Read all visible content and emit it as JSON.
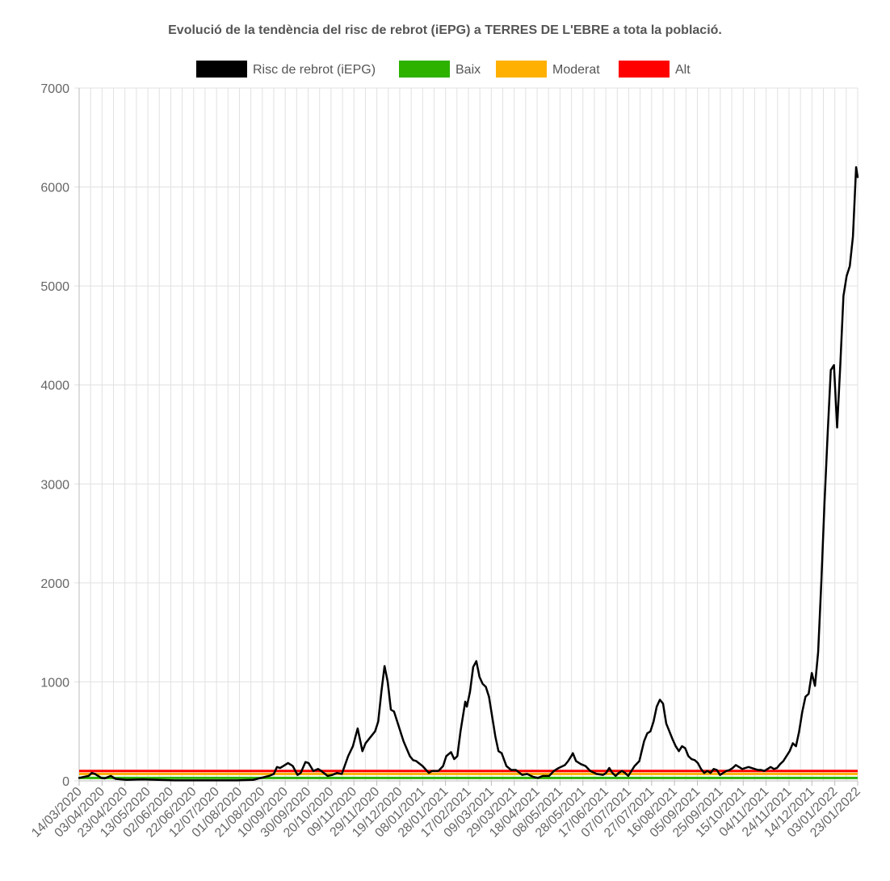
{
  "chart_data": {
    "type": "line",
    "title": "Evolució de la tendència del risc de rebrot (iEPG) a TERRES DE L'EBRE a tota la població.",
    "legend": [
      {
        "name": "Risc de rebrot (iEPG)",
        "color": "#000000"
      },
      {
        "name": "Baix",
        "color": "#2db200"
      },
      {
        "name": "Moderat",
        "color": "#ffb000"
      },
      {
        "name": "Alt",
        "color": "#ff0000"
      }
    ],
    "legend_position": "top-center",
    "grid": true,
    "ylim": [
      0,
      7000
    ],
    "yticks": [
      "0",
      "1000",
      "2000",
      "3000",
      "4000",
      "5000",
      "6000",
      "7000"
    ],
    "xticks": [
      "14/03/2020",
      "03/04/2020",
      "23/04/2020",
      "13/05/2020",
      "02/06/2020",
      "22/06/2020",
      "12/07/2020",
      "01/08/2020",
      "21/08/2020",
      "10/09/2020",
      "30/09/2020",
      "20/10/2020",
      "09/11/2020",
      "29/11/2020",
      "19/12/2020",
      "08/01/2021",
      "28/01/2021",
      "17/02/2021",
      "09/03/2021",
      "29/03/2021",
      "18/04/2021",
      "08/05/2021",
      "28/05/2021",
      "17/06/2021",
      "07/07/2021",
      "27/07/2021",
      "16/08/2021",
      "05/09/2021",
      "25/09/2021",
      "15/10/2021",
      "04/11/2021",
      "24/11/2021",
      "14/12/2021",
      "03/01/2022",
      "23/01/2022"
    ],
    "threshold_values": {
      "Baix": 30,
      "Moderat": 70,
      "Alt": 100
    },
    "series": [
      {
        "name": "Risc de rebrot (iEPG)",
        "color": "#000000",
        "points": [
          [
            0,
            30
          ],
          [
            3,
            40
          ],
          [
            6,
            50
          ],
          [
            8,
            80
          ],
          [
            10,
            70
          ],
          [
            14,
            30
          ],
          [
            16,
            25
          ],
          [
            20,
            50
          ],
          [
            23,
            20
          ],
          [
            30,
            10
          ],
          [
            40,
            15
          ],
          [
            50,
            10
          ],
          [
            60,
            5
          ],
          [
            70,
            5
          ],
          [
            80,
            5
          ],
          [
            90,
            5
          ],
          [
            100,
            5
          ],
          [
            110,
            10
          ],
          [
            115,
            30
          ],
          [
            120,
            50
          ],
          [
            123,
            70
          ],
          [
            125,
            140
          ],
          [
            127,
            130
          ],
          [
            130,
            160
          ],
          [
            132,
            180
          ],
          [
            135,
            150
          ],
          [
            138,
            60
          ],
          [
            140,
            80
          ],
          [
            143,
            190
          ],
          [
            145,
            180
          ],
          [
            148,
            100
          ],
          [
            151,
            120
          ],
          [
            153,
            100
          ],
          [
            157,
            50
          ],
          [
            160,
            60
          ],
          [
            163,
            80
          ],
          [
            166,
            70
          ],
          [
            170,
            250
          ],
          [
            173,
            350
          ],
          [
            176,
            530
          ],
          [
            179,
            300
          ],
          [
            181,
            380
          ],
          [
            184,
            440
          ],
          [
            187,
            500
          ],
          [
            189,
            600
          ],
          [
            191,
            900
          ],
          [
            193,
            1160
          ],
          [
            195,
            1000
          ],
          [
            197,
            720
          ],
          [
            199,
            700
          ],
          [
            202,
            550
          ],
          [
            205,
            400
          ],
          [
            209,
            250
          ],
          [
            211,
            210
          ],
          [
            213,
            200
          ],
          [
            217,
            150
          ],
          [
            221,
            80
          ],
          [
            223,
            100
          ],
          [
            227,
            100
          ],
          [
            230,
            150
          ],
          [
            232,
            250
          ],
          [
            235,
            290
          ],
          [
            237,
            220
          ],
          [
            239,
            250
          ],
          [
            241,
            500
          ],
          [
            244,
            800
          ],
          [
            245,
            750
          ],
          [
            247,
            900
          ],
          [
            249,
            1150
          ],
          [
            251,
            1210
          ],
          [
            253,
            1050
          ],
          [
            255,
            980
          ],
          [
            257,
            950
          ],
          [
            259,
            850
          ],
          [
            261,
            650
          ],
          [
            263,
            450
          ],
          [
            265,
            300
          ],
          [
            267,
            280
          ],
          [
            270,
            150
          ],
          [
            273,
            110
          ],
          [
            276,
            110
          ],
          [
            280,
            60
          ],
          [
            283,
            70
          ],
          [
            287,
            40
          ],
          [
            290,
            30
          ],
          [
            293,
            50
          ],
          [
            297,
            50
          ],
          [
            300,
            100
          ],
          [
            303,
            130
          ],
          [
            307,
            160
          ],
          [
            309,
            200
          ],
          [
            311,
            250
          ],
          [
            312,
            280
          ],
          [
            314,
            200
          ],
          [
            317,
            170
          ],
          [
            320,
            150
          ],
          [
            323,
            100
          ],
          [
            327,
            70
          ],
          [
            331,
            60
          ],
          [
            333,
            80
          ],
          [
            335,
            130
          ],
          [
            337,
            80
          ],
          [
            339,
            50
          ],
          [
            341,
            80
          ],
          [
            343,
            100
          ],
          [
            345,
            80
          ],
          [
            347,
            50
          ],
          [
            349,
            100
          ],
          [
            351,
            150
          ],
          [
            354,
            200
          ],
          [
            357,
            400
          ],
          [
            359,
            480
          ],
          [
            361,
            500
          ],
          [
            363,
            600
          ],
          [
            365,
            750
          ],
          [
            367,
            820
          ],
          [
            369,
            780
          ],
          [
            371,
            580
          ],
          [
            373,
            500
          ],
          [
            375,
            420
          ],
          [
            377,
            350
          ],
          [
            379,
            300
          ],
          [
            381,
            350
          ],
          [
            383,
            330
          ],
          [
            385,
            250
          ],
          [
            387,
            220
          ],
          [
            389,
            210
          ],
          [
            391,
            180
          ],
          [
            393,
            120
          ],
          [
            395,
            80
          ],
          [
            397,
            100
          ],
          [
            399,
            80
          ],
          [
            401,
            120
          ],
          [
            403,
            110
          ],
          [
            405,
            60
          ],
          [
            407,
            80
          ],
          [
            409,
            100
          ],
          [
            411,
            110
          ],
          [
            413,
            130
          ],
          [
            415,
            160
          ],
          [
            417,
            140
          ],
          [
            419,
            120
          ],
          [
            421,
            130
          ],
          [
            423,
            140
          ],
          [
            425,
            130
          ],
          [
            427,
            120
          ],
          [
            429,
            110
          ],
          [
            431,
            110
          ],
          [
            433,
            100
          ],
          [
            435,
            120
          ],
          [
            437,
            140
          ],
          [
            439,
            120
          ],
          [
            441,
            130
          ],
          [
            443,
            170
          ],
          [
            445,
            200
          ],
          [
            447,
            250
          ],
          [
            449,
            300
          ],
          [
            451,
            380
          ],
          [
            453,
            350
          ],
          [
            455,
            500
          ],
          [
            457,
            700
          ],
          [
            459,
            850
          ],
          [
            461,
            880
          ],
          [
            463,
            1090
          ],
          [
            465,
            960
          ],
          [
            467,
            1300
          ],
          [
            469,
            2000
          ],
          [
            471,
            2800
          ],
          [
            473,
            3500
          ],
          [
            475,
            4150
          ],
          [
            477,
            4200
          ],
          [
            479,
            3570
          ],
          [
            481,
            4200
          ],
          [
            483,
            4900
          ],
          [
            485,
            5100
          ],
          [
            487,
            5200
          ],
          [
            489,
            5500
          ],
          [
            491,
            6200
          ],
          [
            492,
            6100
          ]
        ]
      }
    ]
  }
}
